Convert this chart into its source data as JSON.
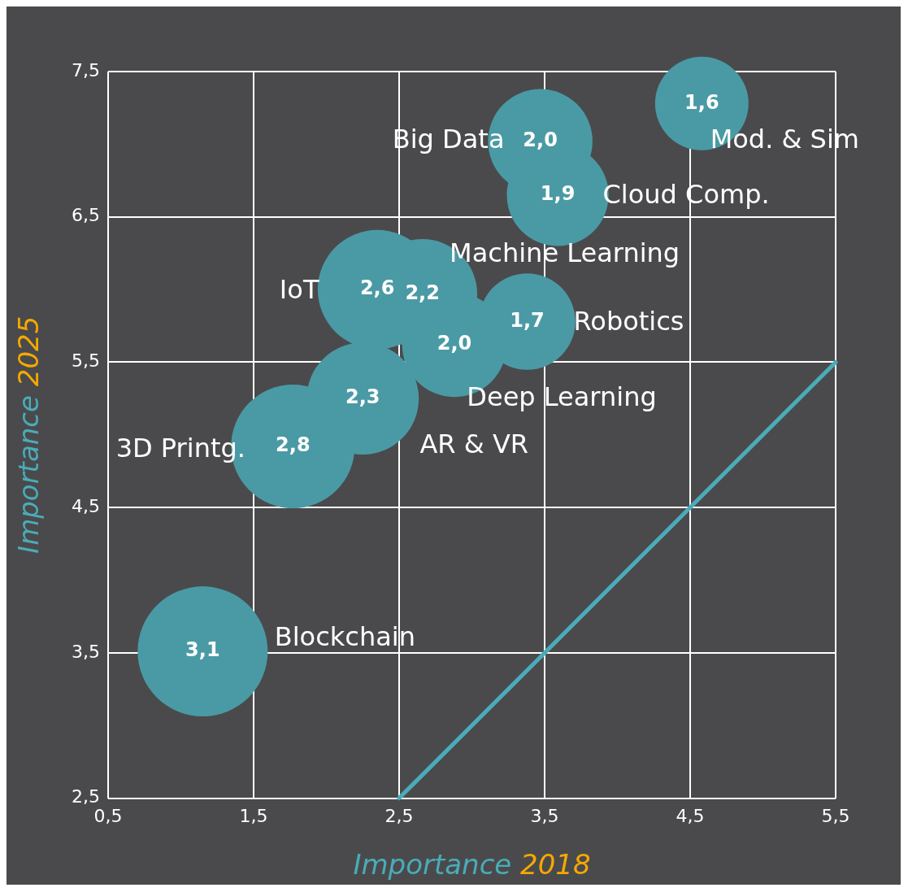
{
  "chart_data": {
    "type": "bubble",
    "xlabel": "Importance 2018",
    "ylabel": "Importance 2025",
    "xlim": [
      0.5,
      5.5
    ],
    "ylim": [
      2.5,
      7.5
    ],
    "xticks": [
      {
        "value": 0.5,
        "label": "0,5"
      },
      {
        "value": 1.5,
        "label": "1,5"
      },
      {
        "value": 2.5,
        "label": "2,5"
      },
      {
        "value": 3.5,
        "label": "3,5"
      },
      {
        "value": 4.5,
        "label": "4,5"
      },
      {
        "value": 5.5,
        "label": "5,5"
      }
    ],
    "yticks": [
      {
        "value": 2.5,
        "label": "2,5"
      },
      {
        "value": 3.5,
        "label": "3,5"
      },
      {
        "value": 4.5,
        "label": "4,5"
      },
      {
        "value": 5.5,
        "label": "5,5"
      },
      {
        "value": 6.5,
        "label": "6,5"
      },
      {
        "value": 7.5,
        "label": "7,5"
      }
    ],
    "grid": true,
    "legend": false,
    "series": [
      {
        "type": "line",
        "color": "#4aacb8",
        "x": [
          2.5,
          5.5
        ],
        "values": [
          2.5,
          5.5
        ]
      },
      {
        "type": "bubble",
        "color": "#4a9aa5",
        "x": [
          4.58,
          3.47,
          3.59,
          2.35,
          2.66,
          3.38,
          2.88,
          2.25,
          1.77,
          1.15
        ],
        "values": [
          7.28,
          7.02,
          6.65,
          6.0,
          5.97,
          5.78,
          5.62,
          5.25,
          4.92,
          3.51
        ],
        "sizes": [
          1.6,
          2.0,
          1.9,
          2.6,
          2.2,
          1.7,
          2.0,
          2.3,
          2.8,
          3.1
        ],
        "value_labels": [
          "1,6",
          "2,0",
          "1,9",
          "2,6",
          "2,2",
          "1,7",
          "2,0",
          "2,3",
          "2,8",
          "3,1"
        ]
      }
    ],
    "annotations": [
      {
        "text": "Mod. & Sim",
        "x": 4.58,
        "y": 7.28
      },
      {
        "text": "Big Data",
        "x": 3.47,
        "y": 7.02
      },
      {
        "text": "Cloud Comp.",
        "x": 3.59,
        "y": 6.65
      },
      {
        "text": "Machine Learning",
        "x": 2.66,
        "y": 5.97
      },
      {
        "text": "IoT",
        "x": 2.35,
        "y": 6.0
      },
      {
        "text": "Robotics",
        "x": 3.38,
        "y": 5.78
      },
      {
        "text": "Deep Learning",
        "x": 2.88,
        "y": 5.62
      },
      {
        "text": "AR & VR",
        "x": 2.25,
        "y": 5.25
      },
      {
        "text": "3D Printg.",
        "x": 1.77,
        "y": 4.92
      },
      {
        "text": "Blockchain",
        "x": 1.15,
        "y": 3.51
      }
    ]
  }
}
